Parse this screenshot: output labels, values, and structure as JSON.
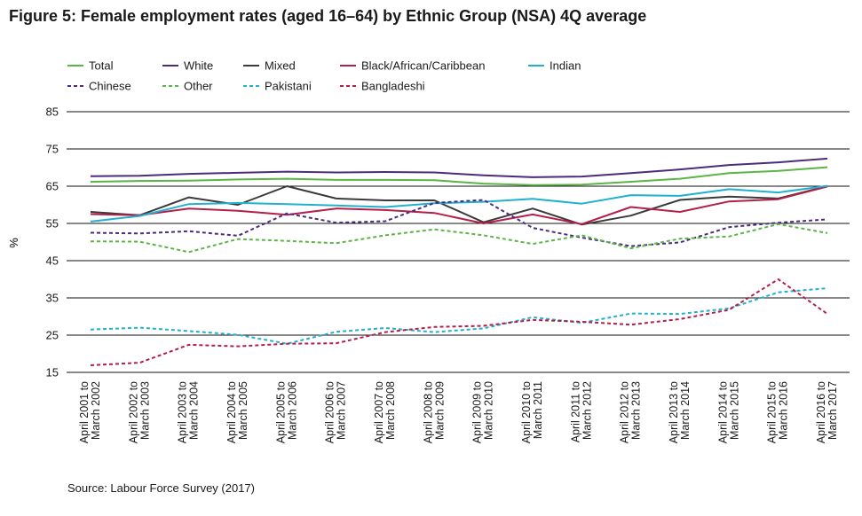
{
  "title": "Figure 5: Female employment rates (aged 16–64) by Ethnic Group (NSA) 4Q average",
  "source": "Source: Labour Force Survey (2017)",
  "chart_data": {
    "type": "line",
    "title": "Figure 5: Female employment rates (aged 16–64) by Ethnic Group (NSA) 4Q average",
    "ylabel": "%",
    "xlabel": "",
    "ylim": [
      15,
      85
    ],
    "yticks": [
      15,
      25,
      35,
      45,
      55,
      65,
      75,
      85
    ],
    "grid": true,
    "legend_position": "top",
    "categories": [
      [
        "April 2001 to",
        "March 2002"
      ],
      [
        "April 2002 to",
        "March 2003"
      ],
      [
        "April 2003 to",
        "March 2004"
      ],
      [
        "April 2004 to",
        "March 2005"
      ],
      [
        "April 2005 to",
        "March 2006"
      ],
      [
        "April 2006 to",
        "March 2007"
      ],
      [
        "April 2007 to",
        "March 2008"
      ],
      [
        "April 2008 to",
        "March 2009"
      ],
      [
        "April 2009 to",
        "March 2010"
      ],
      [
        "April 2010 to",
        "March 2011"
      ],
      [
        "April 2011 to",
        "March 2012"
      ],
      [
        "April 2012 to",
        "March 2013"
      ],
      [
        "April 2013 to",
        "March 2014"
      ],
      [
        "April 2014 to",
        "March 2015"
      ],
      [
        "April 2015 to",
        "March 2016"
      ],
      [
        "April 2016 to",
        "March 2017"
      ]
    ],
    "series": [
      {
        "name": "Total",
        "color": "#5bb546",
        "dashed": false,
        "values": [
          66.2,
          66.4,
          66.5,
          66.8,
          67.0,
          66.7,
          66.7,
          66.6,
          65.7,
          65.3,
          65.4,
          66.2,
          67.0,
          68.5,
          69.1,
          70.1
        ]
      },
      {
        "name": "White",
        "color": "#4a2c7e",
        "dashed": false,
        "values": [
          67.7,
          67.8,
          68.3,
          68.6,
          68.9,
          68.7,
          68.8,
          68.7,
          67.9,
          67.4,
          67.6,
          68.5,
          69.5,
          70.7,
          71.4,
          72.4
        ]
      },
      {
        "name": "Mixed",
        "color": "#3a3a3a",
        "dashed": false,
        "values": [
          58.1,
          57.2,
          62.0,
          60.0,
          65.0,
          61.7,
          61.2,
          61.2,
          55.3,
          59.0,
          54.7,
          57.1,
          61.3,
          62.2,
          61.7,
          65.0
        ]
      },
      {
        "name": "Black/African/Caribbean",
        "color": "#b41f4a",
        "dashed": false,
        "values": [
          57.5,
          57.2,
          59.0,
          58.4,
          57.3,
          59.0,
          58.6,
          57.8,
          55.0,
          57.4,
          54.8,
          59.4,
          58.1,
          60.9,
          61.5,
          64.9
        ]
      },
      {
        "name": "Indian",
        "color": "#22b0d1",
        "dashed": false,
        "values": [
          55.5,
          57.0,
          60.2,
          60.5,
          60.2,
          59.8,
          59.4,
          60.4,
          60.8,
          61.6,
          60.3,
          62.6,
          62.4,
          64.2,
          63.3,
          65.1
        ]
      },
      {
        "name": "Chinese",
        "color": "#4a2c7e",
        "dashed": true,
        "values": [
          52.5,
          52.3,
          52.9,
          51.7,
          57.7,
          55.2,
          55.6,
          60.5,
          61.3,
          53.8,
          51.2,
          48.9,
          49.9,
          54.0,
          55.2,
          56.1
        ]
      },
      {
        "name": "Other",
        "color": "#5bb546",
        "dashed": true,
        "values": [
          50.2,
          50.1,
          47.3,
          50.8,
          50.3,
          49.7,
          51.8,
          53.4,
          51.8,
          49.5,
          51.8,
          48.3,
          50.9,
          51.5,
          54.8,
          52.4
        ]
      },
      {
        "name": "Pakistani",
        "color": "#22b0d1",
        "dashed": true,
        "values": [
          26.5,
          27.0,
          26.1,
          25.1,
          22.7,
          25.9,
          26.9,
          25.8,
          26.8,
          29.8,
          28.3,
          30.8,
          30.7,
          32.2,
          36.5,
          37.6
        ]
      },
      {
        "name": "Bangladeshi",
        "color": "#b41f4a",
        "dashed": true,
        "values": [
          16.9,
          17.6,
          22.4,
          22.0,
          22.7,
          22.8,
          25.8,
          27.2,
          27.5,
          29.1,
          28.6,
          27.8,
          29.3,
          31.8,
          40.0,
          30.7
        ]
      }
    ]
  }
}
